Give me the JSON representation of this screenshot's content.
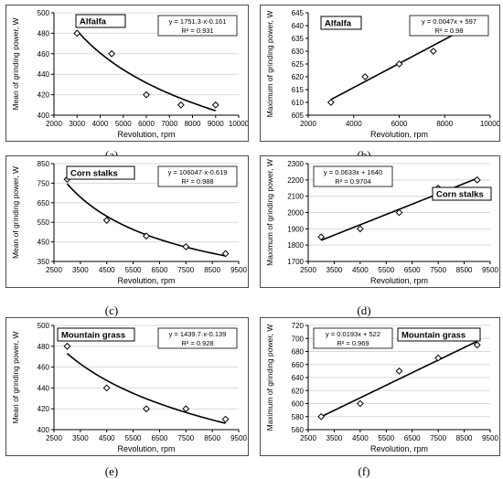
{
  "chart_data": [
    {
      "type": "scatter",
      "caption": "(a)",
      "series_label": "Alfalfa",
      "xlabel": "Revolution, rpm",
      "ylabel": "Mean of grinding power, W",
      "xlim": [
        2000,
        10000
      ],
      "ylim": [
        400,
        500
      ],
      "xticks": [
        2000,
        3000,
        4000,
        5000,
        6000,
        7000,
        8000,
        9000,
        10000
      ],
      "yticks": [
        400,
        420,
        440,
        460,
        480,
        500
      ],
      "x": [
        3000,
        4500,
        6000,
        7500,
        9000
      ],
      "y": [
        480,
        460,
        420,
        410,
        410
      ],
      "fit": {
        "kind": "power",
        "a": 1751.3,
        "b": -0.161,
        "x_range": [
          3000,
          9000
        ]
      },
      "equation": "y = 1751.3·x-0.161",
      "r2": "R² = 0.931",
      "grid": true,
      "legend": "top-right"
    },
    {
      "type": "scatter",
      "caption": "(b)",
      "series_label": "Alfalfa",
      "xlabel": "Revolution, rpm",
      "ylabel": "Maximum of grinding power, W",
      "xlim": [
        2000,
        10000
      ],
      "ylim": [
        605,
        645
      ],
      "xticks": [
        2000,
        4000,
        6000,
        8000,
        10000
      ],
      "yticks": [
        605,
        610,
        615,
        620,
        625,
        630,
        635,
        640,
        645
      ],
      "x": [
        3000,
        4500,
        6000,
        7500,
        9000
      ],
      "y": [
        610,
        620,
        625,
        630,
        640
      ],
      "fit": {
        "kind": "linear",
        "a": 0.0047,
        "b": 597,
        "x_range": [
          3000,
          9000
        ]
      },
      "equation": "y = 0.0047x + 597",
      "r2": "R² = 0.98",
      "grid": false,
      "legend": "top-right"
    },
    {
      "type": "scatter",
      "caption": "(c)",
      "series_label": "Corn stalks",
      "xlabel": "Revolution, rpm",
      "ylabel": "Mean of grinding power, W",
      "xlim": [
        2500,
        9500
      ],
      "ylim": [
        350,
        850
      ],
      "xticks": [
        2500,
        3500,
        4500,
        5500,
        6500,
        7500,
        8500,
        9500
      ],
      "yticks": [
        350,
        450,
        550,
        650,
        750,
        850
      ],
      "x": [
        3000,
        4500,
        6000,
        7500,
        9000
      ],
      "y": [
        770,
        560,
        480,
        425,
        390
      ],
      "fit": {
        "kind": "power",
        "a": 106047,
        "b": -0.619,
        "x_range": [
          3000,
          9000
        ]
      },
      "equation": "y = 106047·x-0.619",
      "r2": "R² = 0.988",
      "grid": true,
      "legend": "top-right"
    },
    {
      "type": "scatter",
      "caption": "(d)",
      "series_label": "Corn stalks",
      "xlabel": "Revolution, rpm",
      "ylabel": "Maximum of grinding power, W",
      "xlim": [
        2500,
        9500
      ],
      "ylim": [
        1700,
        2300
      ],
      "xticks": [
        2500,
        3500,
        4500,
        5500,
        6500,
        7500,
        8500,
        9500
      ],
      "yticks": [
        1700,
        1800,
        1900,
        2000,
        2100,
        2200,
        2300
      ],
      "x": [
        3000,
        4500,
        6000,
        7500,
        9000
      ],
      "y": [
        1850,
        1900,
        2000,
        2150,
        2200
      ],
      "fit": {
        "kind": "linear",
        "a": 0.0633,
        "b": 1640,
        "x_range": [
          3000,
          9000
        ]
      },
      "equation": "y = 0.0633x + 1640",
      "r2": "R² = 0.9704",
      "grid": true,
      "legend": "top-left"
    },
    {
      "type": "scatter",
      "caption": "(e)",
      "series_label": "Mountain grass",
      "xlabel": "Revolution, rpm",
      "ylabel": "Mean of grinding power, W",
      "xlim": [
        2500,
        9500
      ],
      "ylim": [
        400,
        500
      ],
      "xticks": [
        2500,
        3500,
        4500,
        5500,
        6500,
        7500,
        8500,
        9500
      ],
      "yticks": [
        400,
        420,
        440,
        460,
        480,
        500
      ],
      "x": [
        3000,
        4500,
        6000,
        7500,
        9000
      ],
      "y": [
        480,
        440,
        420,
        420,
        410
      ],
      "fit": {
        "kind": "power",
        "a": 1439.7,
        "b": -0.139,
        "x_range": [
          3000,
          9000
        ]
      },
      "equation": "y = 1439.7·x-0.139",
      "r2": "R² = 0.928",
      "grid": true,
      "legend": "top-right"
    },
    {
      "type": "scatter",
      "caption": "(f)",
      "series_label": "Mountain grass",
      "xlabel": "Revolution, rpm",
      "ylabel": "Maximum of grinding power, W",
      "xlim": [
        2500,
        9500
      ],
      "ylim": [
        560,
        720
      ],
      "xticks": [
        2500,
        3500,
        4500,
        5500,
        6500,
        7500,
        8500,
        9500
      ],
      "yticks": [
        560,
        580,
        600,
        620,
        640,
        660,
        680,
        700,
        720
      ],
      "x": [
        3000,
        4500,
        6000,
        7500,
        9000
      ],
      "y": [
        580,
        600,
        650,
        670,
        690
      ],
      "fit": {
        "kind": "linear",
        "a": 0.0193,
        "b": 522,
        "x_range": [
          3000,
          9000
        ]
      },
      "equation": "y = 0.0193x + 522",
      "r2": "R² = 0.969",
      "grid": true,
      "legend": "top-left"
    }
  ]
}
